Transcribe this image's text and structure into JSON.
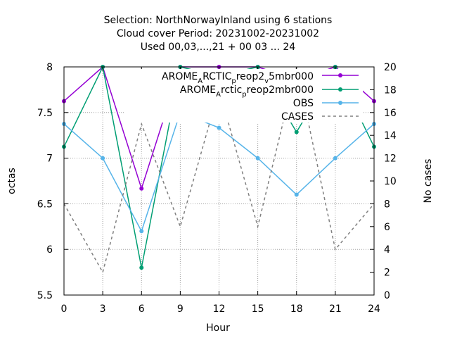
{
  "chart_data": {
    "type": "line",
    "title": [
      "Selection: NorthNorwayInland using     6 stations",
      "Cloud cover   Period: 20231002-20231002",
      "Used  00,03,...,21  + 00 03 ... 24"
    ],
    "xlabel": "Hour",
    "ylabel": "octas",
    "y2label": "No cases",
    "x": [
      0,
      3,
      6,
      9,
      12,
      15,
      18,
      21,
      24
    ],
    "xlim": [
      0,
      24
    ],
    "ylim": [
      5.5,
      8
    ],
    "y2lim": [
      0,
      20
    ],
    "xticks": [
      "0",
      "3",
      "6",
      "9",
      "12",
      "15",
      "18",
      "21",
      "24"
    ],
    "yticks": [
      "5.5",
      "6",
      "6.5",
      "7",
      "7.5",
      "8"
    ],
    "y2ticks": [
      "0",
      "2",
      "4",
      "6",
      "8",
      "10",
      "12",
      "14",
      "16",
      "18",
      "20"
    ],
    "grid": true,
    "legend_position": "top-right",
    "series": [
      {
        "name_main": "AROME",
        "name_sub1": "A",
        "name_mid": "RCTIC",
        "name_sub2": "p",
        "name_mid2": "reop2",
        "name_sub3": "v",
        "name_tail": "5mbr000",
        "color": "#9400d3",
        "axis": "y",
        "values": [
          7.625,
          8.0,
          6.667,
          8.0,
          8.0,
          8.0,
          7.857,
          8.0,
          7.625
        ]
      },
      {
        "name_main": "AROME",
        "name_sub1": "A",
        "name_mid": "rctic",
        "name_sub2": "p",
        "name_tail": "reop2mbr000",
        "color": "#009e73",
        "axis": "y",
        "values": [
          7.125,
          8.0,
          5.8,
          8.0,
          7.9,
          8.0,
          7.286,
          8.0,
          7.125
        ]
      },
      {
        "name": "OBS",
        "color": "#56b4e9",
        "axis": "y",
        "values": [
          7.375,
          7.0,
          6.2,
          7.5,
          7.333,
          7.0,
          6.6,
          7.0,
          7.375
        ]
      },
      {
        "name": "CASES",
        "color": "#808080",
        "axis": "y2",
        "dashed": true,
        "values": [
          8,
          2,
          15,
          6,
          18,
          6,
          20,
          4,
          8
        ]
      }
    ]
  }
}
